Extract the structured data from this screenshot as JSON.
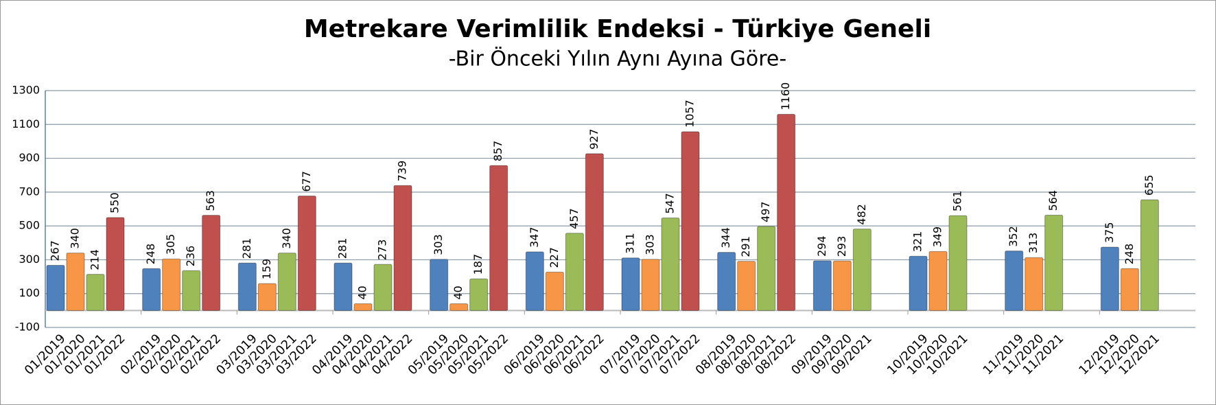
{
  "chart_data": {
    "type": "bar",
    "title": "Metrekare Verimlilik Endeksi - Türkiye Geneli",
    "subtitle": "-Bir Önceki Yılın Aynı Ayına Göre-",
    "ylim": [
      -100,
      1300
    ],
    "yticks": [
      -100,
      100,
      300,
      500,
      700,
      900,
      1100,
      1300
    ],
    "grid": true,
    "colors": [
      "#4f81bd",
      "#f79646",
      "#9bbb59",
      "#c0504d"
    ],
    "groups": [
      {
        "labels": [
          "01/2019",
          "01/2020",
          "01/2021",
          "01/2022"
        ],
        "values": [
          267,
          340,
          214,
          550
        ]
      },
      {
        "labels": [
          "02/2019",
          "02/2020",
          "02/2021",
          "02/2022"
        ],
        "values": [
          248,
          305,
          236,
          563
        ]
      },
      {
        "labels": [
          "03/2019",
          "03/2020",
          "03/2021",
          "03/2022"
        ],
        "values": [
          281,
          159,
          340,
          677
        ]
      },
      {
        "labels": [
          "04/2019",
          "04/2020",
          "04/2021",
          "04/2022"
        ],
        "values": [
          281,
          40,
          273,
          739
        ]
      },
      {
        "labels": [
          "05/2019",
          "05/2020",
          "05/2021",
          "05/2022"
        ],
        "values": [
          303,
          40,
          187,
          857
        ]
      },
      {
        "labels": [
          "06/2019",
          "06/2020",
          "06/2021",
          "06/2022"
        ],
        "values": [
          347,
          227,
          457,
          927
        ]
      },
      {
        "labels": [
          "07/2019",
          "07/2020",
          "07/2021",
          "07/2022"
        ],
        "values": [
          311,
          303,
          547,
          1057
        ]
      },
      {
        "labels": [
          "08/2019",
          "08/2020",
          "08/2021",
          "08/2022"
        ],
        "values": [
          344,
          291,
          497,
          1160
        ]
      },
      {
        "labels": [
          "09/2019",
          "09/2020",
          "09/2021"
        ],
        "values": [
          294,
          293,
          482
        ]
      },
      {
        "labels": [
          "10/2019",
          "10/2020",
          "10/2021"
        ],
        "values": [
          321,
          349,
          561
        ]
      },
      {
        "labels": [
          "11/2019",
          "11/2020",
          "11/2021"
        ],
        "values": [
          352,
          313,
          564
        ]
      },
      {
        "labels": [
          "12/2019",
          "12/2020",
          "12/2021"
        ],
        "values": [
          375,
          248,
          655
        ]
      }
    ]
  }
}
